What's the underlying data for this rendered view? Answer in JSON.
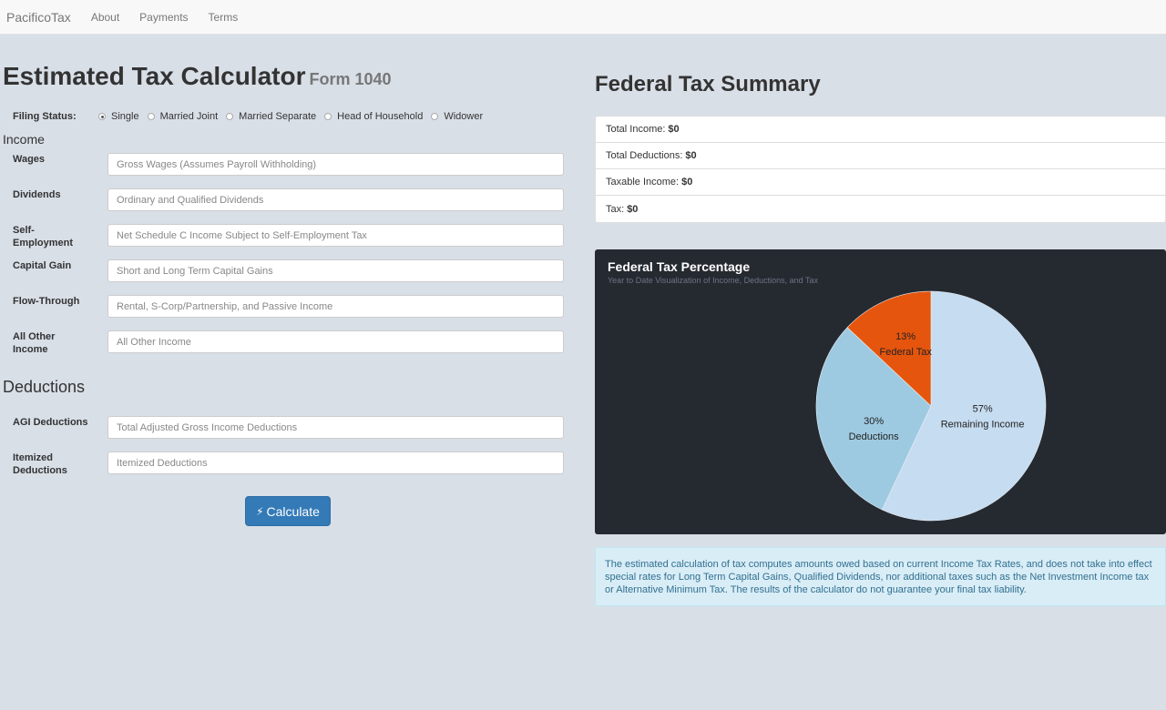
{
  "nav": {
    "brand": "PacificoTax",
    "links": [
      "About",
      "Payments",
      "Terms"
    ]
  },
  "calculator": {
    "title": "Estimated Tax Calculator",
    "subtitle": "Form 1040",
    "filing_status": {
      "label": "Filing Status:",
      "options": [
        "Single",
        "Married Joint",
        "Married Separate",
        "Head of Household",
        "Widower"
      ],
      "selected": "Single"
    },
    "income": {
      "heading": "Income",
      "fields": [
        {
          "label": "Wages",
          "placeholder": "Gross Wages (Assumes Payroll Withholding)"
        },
        {
          "label": "Dividends",
          "placeholder": "Ordinary and Qualified Dividends"
        },
        {
          "label": "Self-Employment",
          "placeholder": "Net Schedule C Income Subject to Self-Employment Tax"
        },
        {
          "label": "Capital Gain",
          "placeholder": "Short and Long Term Capital Gains"
        },
        {
          "label": "Flow-Through",
          "placeholder": "Rental, S-Corp/Partnership, and Passive Income"
        },
        {
          "label": "All Other Income",
          "placeholder": "All Other Income"
        }
      ]
    },
    "deductions": {
      "heading": "Deductions",
      "fields": [
        {
          "label": "AGI Deductions",
          "placeholder": "Total Adjusted Gross Income Deductions"
        },
        {
          "label": "Itemized Deductions",
          "placeholder": "Itemized Deductions"
        }
      ]
    },
    "calculate_label": "Calculate"
  },
  "summary": {
    "title": "Federal Tax Summary",
    "items": [
      {
        "label": "Total Income:",
        "value": "$0"
      },
      {
        "label": "Total Deductions:",
        "value": "$0"
      },
      {
        "label": "Taxable Income:",
        "value": "$0"
      },
      {
        "label": "Tax:",
        "value": "$0"
      }
    ]
  },
  "chart_data": {
    "type": "pie",
    "title": "Federal Tax Percentage",
    "subtitle": "Year to Date Visualization of Income, Deductions, and Tax",
    "slices": [
      {
        "label": "Remaining Income",
        "value": 57,
        "percent_label": "57%",
        "color": "#c6dcf0"
      },
      {
        "label": "Deductions",
        "value": 30,
        "percent_label": "30%",
        "color": "#9ecae1"
      },
      {
        "label": "Federal Tax",
        "value": 13,
        "percent_label": "13%",
        "color": "#e6550d"
      }
    ]
  },
  "note": {
    "text": "The estimated calculation of tax computes amounts owed based on current Income Tax Rates, and does not take into effect special rates for Long Term Capital Gains, Qualified Dividends, nor additional taxes such as the Net Investment Income tax or Alternative Minimum Tax. The results of the calculator do not guarantee your final tax liability."
  },
  "colors": {
    "primary": "#337ab7",
    "chart_background": "#252a31",
    "info_background": "#d9edf7",
    "info_text": "#31708f"
  }
}
